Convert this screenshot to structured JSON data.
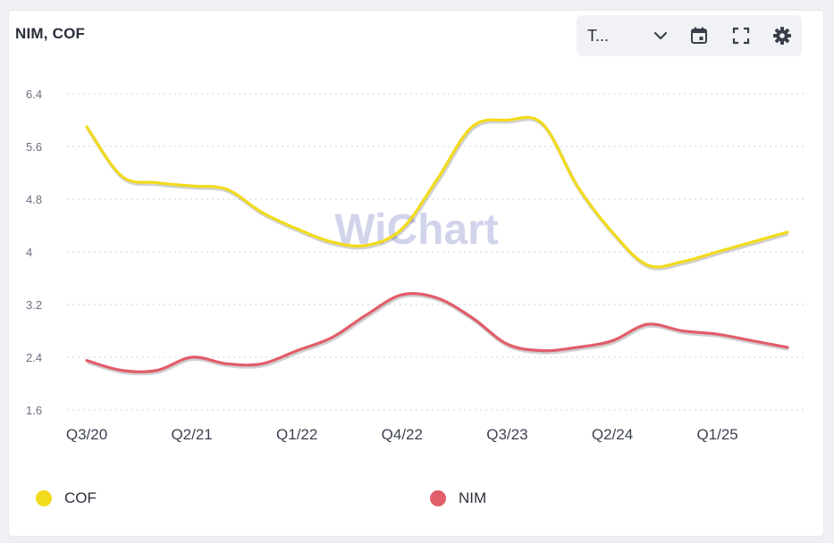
{
  "header": {
    "title": "NIM, COF"
  },
  "toolbar": {
    "range_label": "T...",
    "icons": [
      "chevron-down-icon",
      "calendar-icon",
      "fullscreen-icon",
      "gear-icon"
    ]
  },
  "watermark": {
    "text": "WiChart"
  },
  "colors": {
    "cof": "#f2db1c",
    "nim": "#e15d6a",
    "grid": "#d9dce3",
    "axis_text": "#6b7080"
  },
  "chart_data": {
    "type": "line",
    "title": "NIM, COF",
    "x": [
      "Q3/20",
      "Q4/20",
      "Q1/21",
      "Q2/21",
      "Q3/21",
      "Q4/21",
      "Q1/22",
      "Q2/22",
      "Q3/22",
      "Q4/22",
      "Q1/23",
      "Q2/23",
      "Q3/23",
      "Q4/23",
      "Q1/24",
      "Q2/24",
      "Q3/24",
      "Q4/24",
      "Q1/25",
      "Q2/25",
      "Q3/25"
    ],
    "x_tick_labels": [
      "Q3/20",
      "Q2/21",
      "Q1/22",
      "Q4/22",
      "Q3/23",
      "Q2/24",
      "Q1/25"
    ],
    "y_ticks": [
      "6.4",
      "5.6",
      "4.8",
      "4",
      "3.2",
      "2.4",
      "1.6"
    ],
    "ylim": [
      1.6,
      6.4
    ],
    "grid": true,
    "legend_position": "bottom",
    "series": [
      {
        "name": "COF",
        "color": "#f2db1c",
        "values": [
          5.9,
          5.15,
          5.05,
          5.0,
          4.95,
          4.6,
          4.35,
          4.15,
          4.1,
          4.35,
          5.1,
          5.9,
          6.0,
          5.95,
          5.0,
          4.3,
          3.8,
          3.85,
          4.0,
          4.15,
          4.3
        ]
      },
      {
        "name": "NIM",
        "color": "#e15d6a",
        "values": [
          2.35,
          2.2,
          2.2,
          2.4,
          2.3,
          2.3,
          2.5,
          2.7,
          3.05,
          3.35,
          3.3,
          3.0,
          2.6,
          2.5,
          2.55,
          2.65,
          2.9,
          2.8,
          2.75,
          2.65,
          2.55
        ]
      }
    ]
  }
}
